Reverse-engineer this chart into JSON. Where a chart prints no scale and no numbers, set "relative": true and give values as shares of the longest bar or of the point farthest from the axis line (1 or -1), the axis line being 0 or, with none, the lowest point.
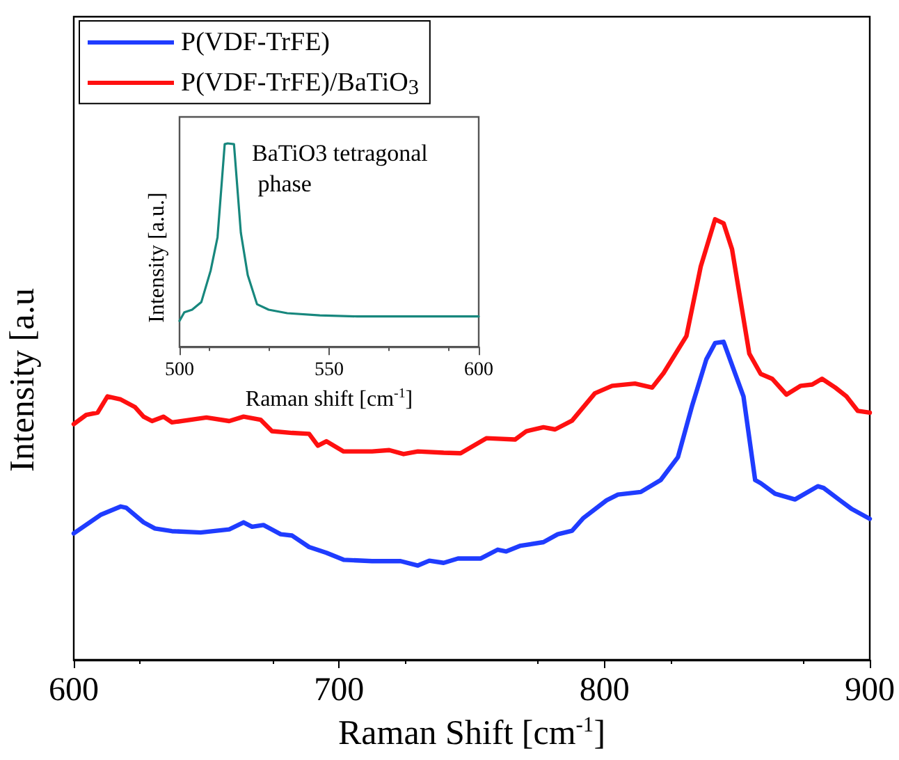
{
  "chart_data": [
    {
      "type": "line",
      "relative": true,
      "xlabel": "Raman Shift [cm$^{-1}$]",
      "ylabel": "Intensity [a.u",
      "xlim": [
        600,
        900
      ],
      "xticks": [
        600,
        700,
        800,
        900
      ],
      "legend": "top left",
      "tick_labels": "x",
      "series": [
        {
          "name": "P(VDF-TrFE)",
          "color": "#1f3cff",
          "x": [
            600,
            610.1,
            617.7,
            619.8,
            626.3,
            630.6,
            637,
            647.8,
            658.6,
            664,
            667.2,
            671.5,
            678,
            682.3,
            688.7,
            695.2,
            701.7,
            712.4,
            723.2,
            729.7,
            734,
            739.4,
            744.8,
            753.4,
            759.8,
            763,
            768.4,
            777,
            782.4,
            787.8,
            792.1,
            800.8,
            805.1,
            813.7,
            821.2,
            827.7,
            833.1,
            838.4,
            841.7,
            844.9,
            848.1,
            852.4,
            856.8,
            858.9,
            864.3,
            871.8,
            880.4,
            882.6,
            889,
            893.3,
            900
          ],
          "values": [
            0.287,
            0.329,
            0.348,
            0.345,
            0.312,
            0.298,
            0.292,
            0.289,
            0.296,
            0.312,
            0.302,
            0.306,
            0.285,
            0.282,
            0.256,
            0.243,
            0.227,
            0.224,
            0.224,
            0.214,
            0.225,
            0.22,
            0.23,
            0.23,
            0.25,
            0.246,
            0.259,
            0.267,
            0.285,
            0.293,
            0.322,
            0.362,
            0.375,
            0.381,
            0.408,
            0.46,
            0.578,
            0.682,
            0.719,
            0.722,
            0.669,
            0.598,
            0.408,
            0.401,
            0.377,
            0.364,
            0.394,
            0.39,
            0.361,
            0.342,
            0.32
          ]
        },
        {
          "name": "P(VDF-TrFE)/BaTiO$_{3}$",
          "color": "#ff1010",
          "x": [
            600,
            604.7,
            609,
            612.7,
            617.7,
            623,
            626.3,
            629.5,
            633.8,
            637,
            650,
            658.6,
            664,
            670.4,
            674.7,
            682.3,
            688.7,
            692,
            695.2,
            701.7,
            712.4,
            718.9,
            724.3,
            729.7,
            739.4,
            745.8,
            755.5,
            766.3,
            770.6,
            777,
            781.4,
            787.8,
            796.4,
            802.9,
            811.5,
            818,
            822.3,
            830.9,
            836.3,
            841.7,
            844.9,
            848.1,
            854.6,
            858.9,
            863.2,
            868.6,
            874,
            878.3,
            882,
            887,
            891.2,
            895.5,
            900
          ],
          "values": [
            0.535,
            0.556,
            0.561,
            0.598,
            0.591,
            0.574,
            0.552,
            0.542,
            0.552,
            0.539,
            0.55,
            0.542,
            0.552,
            0.545,
            0.519,
            0.515,
            0.513,
            0.486,
            0.496,
            0.473,
            0.473,
            0.476,
            0.467,
            0.473,
            0.47,
            0.469,
            0.503,
            0.5,
            0.519,
            0.528,
            0.523,
            0.543,
            0.605,
            0.622,
            0.627,
            0.618,
            0.651,
            0.735,
            0.893,
            1.0,
            0.991,
            0.932,
            0.695,
            0.649,
            0.638,
            0.602,
            0.622,
            0.625,
            0.638,
            0.618,
            0.598,
            0.565,
            0.561
          ]
        }
      ]
    },
    {
      "type": "line",
      "relative": true,
      "xlabel": "Raman shift [cm$^{-1}$]",
      "ylabel": "Intensity [a.u.]",
      "xlim": [
        500,
        600
      ],
      "xticks": [
        500,
        550,
        600
      ],
      "tick_labels": "x",
      "annotations": [
        "BaTiO3 tetragonal\n phase"
      ],
      "series": [
        {
          "color": "#17877d",
          "x": [
            500,
            501.6,
            504.2,
            507.3,
            510.4,
            512.7,
            515.1,
            516.1,
            518.2,
            520.5,
            522.8,
            525.9,
            529.8,
            536,
            546.9,
            559.3,
            600
          ],
          "values": [
            0.127,
            0.169,
            0.182,
            0.22,
            0.374,
            0.538,
            0.996,
            1.0,
            0.996,
            0.56,
            0.352,
            0.209,
            0.182,
            0.165,
            0.154,
            0.149,
            0.149
          ]
        }
      ]
    }
  ]
}
